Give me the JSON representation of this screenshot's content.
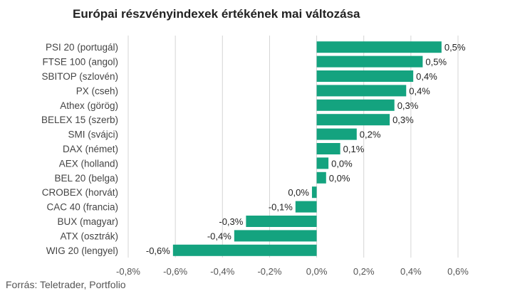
{
  "chart_data": {
    "type": "bar",
    "orientation": "horizontal",
    "title": "Európai részvényindexek értékének mai változása",
    "source": "Forrás: Teletrader, Portfolio",
    "color": "#14a37f",
    "categories": [
      "PSI 20 (portugál)",
      "FTSE 100 (angol)",
      "SBITOP (szlovén)",
      "PX (cseh)",
      "Athex (görög)",
      "BELEX 15 (szerb)",
      "SMI (svájci)",
      "DAX (német)",
      "AEX (holland)",
      "BEL 20 (belga)",
      "CROBEX (horvát)",
      "CAC 40 (francia)",
      "BUX (magyar)",
      "ATX (osztrák)",
      "WIG 20 (lengyel)"
    ],
    "values": [
      0.53,
      0.45,
      0.41,
      0.38,
      0.33,
      0.31,
      0.17,
      0.1,
      0.05,
      0.04,
      -0.02,
      -0.09,
      -0.3,
      -0.35,
      -0.61
    ],
    "value_labels": [
      "0,5%",
      "0,5%",
      "0,4%",
      "0,4%",
      "0,3%",
      "0,3%",
      "0,2%",
      "0,1%",
      "0,0%",
      "0,0%",
      "0,0%",
      "-0,1%",
      "-0,3%",
      "-0,4%",
      "-0,6%"
    ],
    "x_ticks": [
      -0.8,
      -0.6,
      -0.4,
      -0.2,
      0.0,
      0.2,
      0.4,
      0.6
    ],
    "x_tick_labels": [
      "-0,8%",
      "-0,6%",
      "-0,4%",
      "-0,2%",
      "0,0%",
      "0,2%",
      "0,4%",
      "0,6%"
    ],
    "xlim": [
      -0.8,
      0.6
    ],
    "grid": true
  }
}
